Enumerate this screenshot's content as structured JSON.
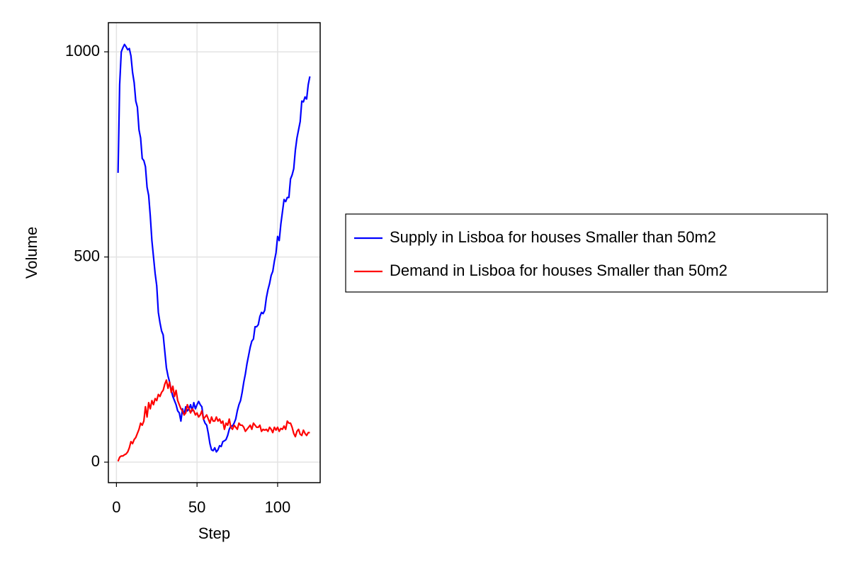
{
  "chart_data": {
    "type": "line",
    "x_label": "Step",
    "y_label": "Volume",
    "x": [
      1,
      2,
      3,
      4,
      5,
      6,
      7,
      8,
      9,
      10,
      11,
      12,
      13,
      14,
      15,
      16,
      17,
      18,
      19,
      20,
      21,
      22,
      23,
      24,
      25,
      26,
      27,
      28,
      29,
      30,
      31,
      32,
      33,
      34,
      35,
      36,
      37,
      38,
      39,
      40,
      41,
      42,
      43,
      44,
      45,
      46,
      47,
      48,
      49,
      50,
      51,
      52,
      53,
      54,
      55,
      56,
      57,
      58,
      59,
      60,
      61,
      62,
      63,
      64,
      65,
      66,
      67,
      68,
      69,
      70,
      71,
      72,
      73,
      74,
      75,
      76,
      77,
      78,
      79,
      80,
      81,
      82,
      83,
      84,
      85,
      86,
      87,
      88,
      89,
      90,
      91,
      92,
      93,
      94,
      95,
      96,
      97,
      98,
      99,
      100,
      101,
      102,
      103,
      104,
      105,
      106,
      107,
      108,
      109,
      110,
      111,
      112,
      113,
      114,
      115,
      116,
      117,
      118,
      119,
      120
    ],
    "series": [
      {
        "name": "Supply in Lisboa for houses Smaller than 50m2",
        "color": "#0000ff",
        "values": [
          705,
          920,
          1000,
          1010,
          1018,
          1012,
          1005,
          1008,
          990,
          950,
          925,
          880,
          865,
          810,
          790,
          740,
          735,
          720,
          670,
          650,
          600,
          540,
          500,
          460,
          430,
          365,
          340,
          320,
          310,
          270,
          230,
          210,
          195,
          175,
          160,
          150,
          140,
          125,
          120,
          100,
          130,
          115,
          135,
          125,
          130,
          140,
          125,
          145,
          130,
          140,
          148,
          140,
          135,
          105,
          95,
          90,
          70,
          45,
          30,
          28,
          35,
          25,
          30,
          40,
          38,
          50,
          52,
          55,
          65,
          80,
          88,
          88,
          95,
          105,
          125,
          140,
          150,
          170,
          195,
          215,
          240,
          260,
          280,
          295,
          300,
          330,
          330,
          335,
          355,
          365,
          362,
          370,
          400,
          420,
          435,
          455,
          465,
          490,
          510,
          550,
          540,
          580,
          610,
          640,
          635,
          645,
          645,
          690,
          700,
          715,
          760,
          790,
          810,
          830,
          880,
          878,
          890,
          885,
          920,
          940
        ]
      },
      {
        "name": "Demand in Lisboa for houses Smaller than 50m2",
        "color": "#ff0000",
        "values": [
          2,
          12,
          15,
          15,
          18,
          20,
          25,
          35,
          50,
          45,
          55,
          60,
          70,
          80,
          95,
          90,
          100,
          135,
          110,
          145,
          130,
          150,
          140,
          155,
          150,
          165,
          160,
          170,
          175,
          190,
          200,
          180,
          195,
          170,
          185,
          160,
          175,
          150,
          140,
          130,
          125,
          115,
          120,
          140,
          130,
          120,
          130,
          125,
          115,
          120,
          110,
          115,
          125,
          105,
          110,
          115,
          105,
          95,
          110,
          100,
          100,
          110,
          100,
          105,
          95,
          100,
          80,
          95,
          90,
          105,
          85,
          80,
          90,
          85,
          80,
          95,
          90,
          90,
          85,
          75,
          80,
          85,
          90,
          80,
          95,
          90,
          85,
          85,
          90,
          75,
          80,
          78,
          80,
          75,
          85,
          80,
          72,
          85,
          78,
          85,
          75,
          82,
          80,
          88,
          80,
          100,
          95,
          95,
          85,
          70,
          62,
          75,
          80,
          68,
          65,
          78,
          70,
          65,
          72,
          72
        ]
      }
    ],
    "xlim": [
      -5,
      126.4
    ],
    "ylim": [
      -50,
      1071
    ],
    "xticks": [
      0,
      50,
      100
    ],
    "yticks": [
      0,
      500,
      1000
    ],
    "grid": true,
    "legend_position": "right"
  }
}
